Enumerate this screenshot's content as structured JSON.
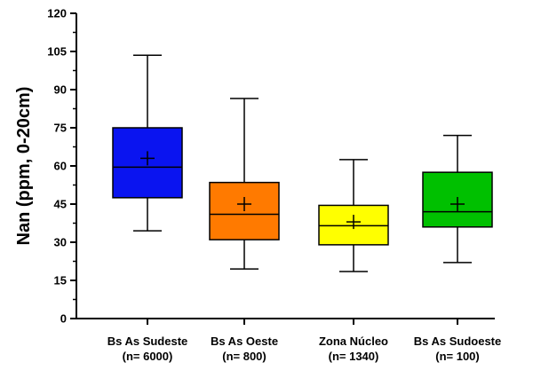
{
  "chart_data": {
    "type": "box",
    "title": "",
    "xlabel": "",
    "ylabel": "Nan (ppm, 0-20cm)",
    "ylim": [
      0,
      120
    ],
    "y_ticks": [
      0,
      15,
      30,
      45,
      60,
      75,
      90,
      105,
      120
    ],
    "grid": false,
    "legend": "none",
    "categories": [
      {
        "name": "Bs As Sudeste",
        "n_label": "(n= 6000)",
        "color": "#0a14f0",
        "min": 34.5,
        "q1": 47.5,
        "median": 59.5,
        "q3": 75,
        "max": 103.5,
        "mean": 63
      },
      {
        "name": "Bs As Oeste",
        "n_label": "(n= 800)",
        "color": "#ff7a00",
        "min": 19.5,
        "q1": 31,
        "median": 41,
        "q3": 53.5,
        "max": 86.5,
        "mean": 45
      },
      {
        "name": "Zona Núcleo",
        "n_label": "(n= 1340)",
        "color": "#ffff00",
        "min": 18.5,
        "q1": 29,
        "median": 36.5,
        "q3": 44.5,
        "max": 62.5,
        "mean": 38
      },
      {
        "name": "Bs As Sudoeste",
        "n_label": "(n= 100)",
        "color": "#00c000",
        "min": 22,
        "q1": 36,
        "median": 42,
        "q3": 57.5,
        "max": 72,
        "mean": 45
      }
    ]
  }
}
